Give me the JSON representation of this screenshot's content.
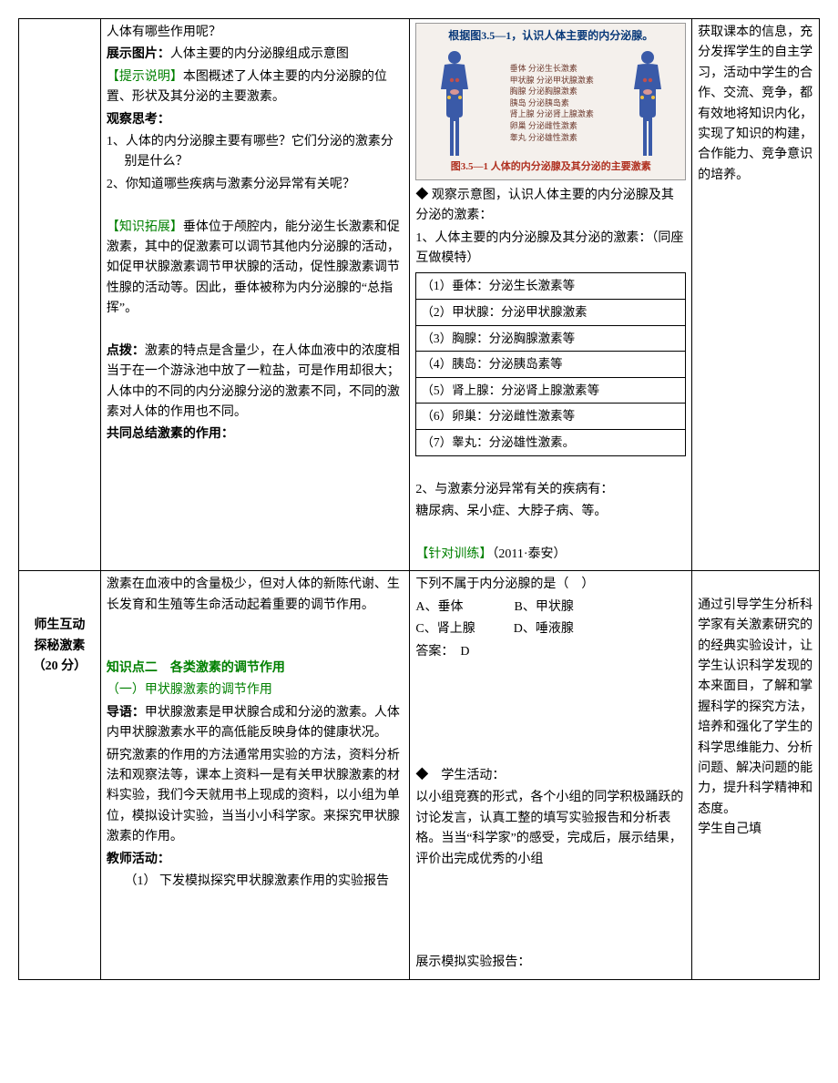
{
  "row1": {
    "col1": "",
    "col2": {
      "q_line": "人体有哪些作用呢？",
      "show_label": "展示图片：",
      "show_text": "人体主要的内分泌腺组成示意图",
      "tip_label": "【提示说明】",
      "tip_text": "本图概述了人体主要的内分泌腺的位置、形状及其分泌的主要激素。",
      "think_label": "观察思考：",
      "think_1": "1、人体的内分泌腺主要有哪些？它们分泌的激素分别是什么？",
      "think_2": "2、你知道哪些疾病与激素分泌异常有关呢？",
      "ext_label": "【知识拓展】",
      "ext_text": "垂体位于颅腔内，能分泌生长激素和促激素，其中的促激素可以调节其他内分泌腺的活动，如促甲状腺激素调节甲状腺的活动，促性腺激素调节性腺的活动等。因此，垂体被称为内分泌腺的“总指挥”。",
      "dianbo_label": "点拨：",
      "dianbo_text": "激素的特点是含量少，在人体血液中的浓度相当于在一个游泳池中放了一粒盐，可是作用却很大；人体中的不同的内分泌腺分泌的激素不同，不同的激素对人体的作用也不同。",
      "summary_label": "共同总结激素的作用："
    },
    "col3": {
      "diagram_title": "根据图3.5—1，认识人体主要的内分泌腺。",
      "organ_labels": [
        "垂体  分泌生长激素",
        "甲状腺  分泌甲状腺激素",
        "胸腺  分泌胸腺激素",
        "胰岛  分泌胰岛素",
        "肾上腺  分泌肾上腺激素",
        "卵巢  分泌雌性激素",
        "睾丸  分泌雄性激素"
      ],
      "diagram_caption": "图3.5—1  人体的内分泌腺及其分泌的主要激素",
      "observe_label": "◆  观察示意图，认识人体主要的内分泌腺及其分泌的激素：",
      "item_1": "1、人体主要的内分泌腺及其分泌的激素：（同座互做模特）",
      "gland_rows": [
        "（1）垂体：分泌生长激素等",
        "（2）甲状腺：分泌甲状腺激素",
        "（3）胸腺：分泌胸腺激素等",
        "（4）胰岛：分泌胰岛素等",
        "（5）肾上腺：分泌肾上腺激素等",
        "（6）卵巢：分泌雌性激素等",
        "（7）睾丸：分泌雄性激素。"
      ],
      "item_2a": "2、与激素分泌异常有关的疾病有：",
      "item_2b": "糖尿病、呆小症、大脖子病、等。",
      "train_label": "【针对训练】",
      "train_src": "（2011·泰安）"
    },
    "col4": "获取课本的信息，充分发挥学生的自主学习，活动中学生的合作、交流、竞争，都有效地将知识内化，实现了知识的构建，合作能力、竞争意识的培养。",
    "silhouette_fill": "#3a5aa8"
  },
  "row2": {
    "col1": {
      "l1": "师生互动",
      "l2": "探秘激素",
      "l3": "（20 分）"
    },
    "col2": {
      "lead": "激素在血液中的含量极少，但对人体的新陈代谢、生长发育和生殖等生命活动起着重要的调节作用。",
      "kp2_label": "知识点二　各类激素的调节作用",
      "sec1_label": "（一）甲状腺激素的调节作用",
      "daoyu_label": "导语：",
      "daoyu_text": "甲状腺激素是甲状腺合成和分泌的激素。人体内甲状腺激素水平的高低能反映身体的健康状况。",
      "method": "研究激素的作用的方法通常用实验的方法，资料分析法和观察法等，课本上资料一是有关甲状腺激素的材料实验，我们今天就用书上现成的资料，以小组为单位，模拟设计实验，当当小小科学家。来探究甲状腺激素的作用。",
      "teacher_label": "教师活动：",
      "teacher_1": "（1） 下发模拟探究甲状腺激素作用的实验报告"
    },
    "col3": {
      "quiz_q": "下列不属于内分泌腺的是（　）",
      "opt_a": "A、垂体",
      "opt_b": "B、甲状腺",
      "opt_c": "C、肾上腺",
      "opt_d": "D、唾液腺",
      "ans_label": "答案：　D",
      "activity_label": "◆　学生活动：",
      "activity_text": "以小组竞赛的形式，各个小组的同学积极踊跃的讨论发言，认真工整的填写实验报告和分析表格。当当“科学家”的感受，完成后，展示结果，评价出完成优秀的小组",
      "show_report": "展示模拟实验报告："
    },
    "col4": "通过引导学生分析科学家有关激素研究的的经典实验设计，让学生认识科学发现的本来面目，了解和掌握科学的探究方法，培养和强化了学生的科学思维能力、分析问题、解决问题的能力，提升科学精神和态度。\n学生自己填"
  }
}
